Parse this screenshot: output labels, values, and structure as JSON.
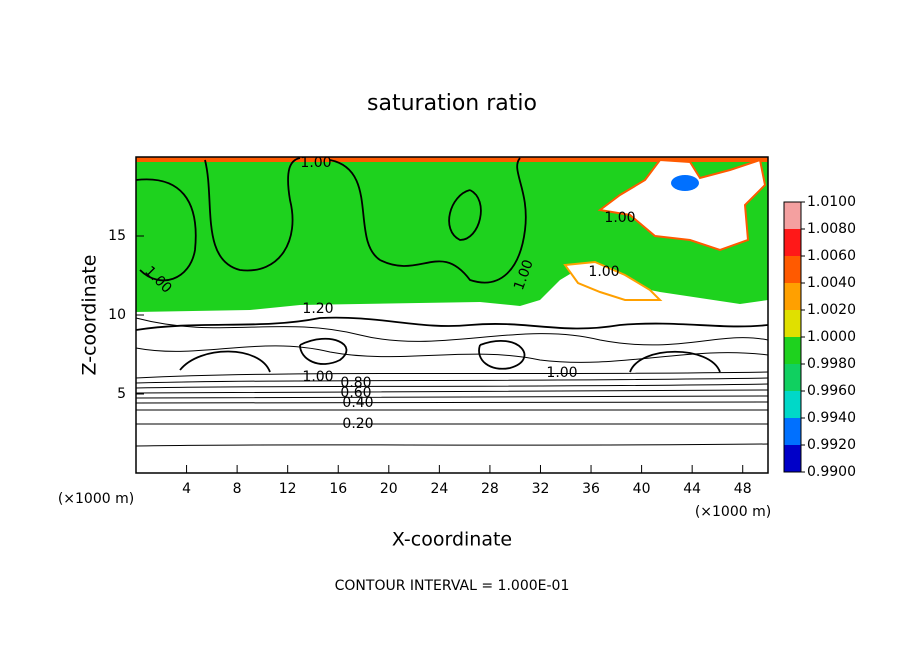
{
  "chart_data": {
    "type": "contour",
    "title": "saturation ratio",
    "x_label": "X-coordinate",
    "y_label": "Z-coordinate",
    "x_unit": "(×1000 m)",
    "xlim": [
      0,
      50
    ],
    "ylim": [
      0,
      20
    ],
    "xticks": [
      4,
      8,
      12,
      16,
      20,
      24,
      28,
      32,
      36,
      40,
      44,
      48
    ],
    "yticks": [
      5,
      10,
      15
    ],
    "colorbar": {
      "ticks": [
        {
          "value": 1.01,
          "label": "1.0100"
        },
        {
          "value": 1.008,
          "label": "1.0080"
        },
        {
          "value": 1.006,
          "label": "1.0060"
        },
        {
          "value": 1.004,
          "label": "1.0040"
        },
        {
          "value": 1.002,
          "label": "1.0020"
        },
        {
          "value": 1.0,
          "label": "1.0000"
        },
        {
          "value": 0.998,
          "label": "0.9980"
        },
        {
          "value": 0.996,
          "label": "0.9960"
        },
        {
          "value": 0.994,
          "label": "0.9940"
        },
        {
          "value": 0.992,
          "label": "0.9920"
        },
        {
          "value": 0.99,
          "label": "0.9900"
        }
      ],
      "colors": [
        "#f4a0a0",
        "#ff1818",
        "#ff5a00",
        "#ffa000",
        "#e0e000",
        "#1ed21e",
        "#10d060",
        "#00d8c8",
        "#0070ff",
        "#0000c8",
        "#5a00a0"
      ]
    },
    "contour_labels": [
      {
        "value": 1.0,
        "label": "1.00"
      },
      {
        "value": 1.0,
        "label": "1.00"
      },
      {
        "value": 1.2,
        "label": "1.20"
      },
      {
        "value": 1.0,
        "label": "1.00"
      },
      {
        "value": 1.0,
        "label": "1.00"
      },
      {
        "value": 1.0,
        "label": "1.00"
      },
      {
        "value": 1.0,
        "label": "1.00"
      },
      {
        "value": 1.0,
        "label": "1.00"
      },
      {
        "value": 0.8,
        "label": "0.80"
      },
      {
        "value": 0.6,
        "label": "0.60"
      },
      {
        "value": 0.4,
        "label": "0.40"
      },
      {
        "value": 0.2,
        "label": "0.20"
      }
    ],
    "footer": "CONTOUR INTERVAL = 1.000E-01"
  }
}
